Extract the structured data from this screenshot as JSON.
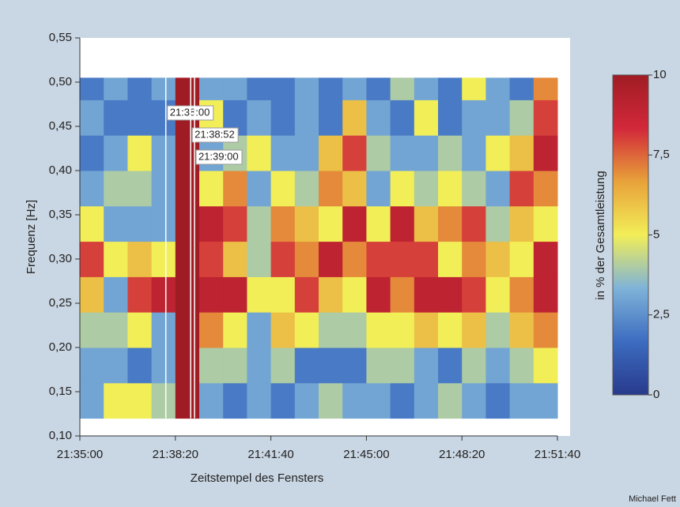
{
  "chart_data": {
    "type": "heatmap",
    "xlabel": "Zeitstempel des Fensters",
    "ylabel": "Frequenz [Hz]",
    "colorbar_label": "in % der Gesamtleistung",
    "credit": "Michael Fett",
    "xlim": [
      77700,
      78700
    ],
    "xticks": [
      {
        "value": 77700,
        "label": "21:35:00"
      },
      {
        "value": 77900,
        "label": "21:38:20"
      },
      {
        "value": 78100,
        "label": "21:41:40"
      },
      {
        "value": 78300,
        "label": "21:45:00"
      },
      {
        "value": 78500,
        "label": "21:48:20"
      },
      {
        "value": 78700,
        "label": "21:51:40"
      }
    ],
    "ylim": [
      0.1,
      0.55
    ],
    "yticks": [
      {
        "value": 0.1,
        "label": "0,10"
      },
      {
        "value": 0.15,
        "label": "0,15"
      },
      {
        "value": 0.2,
        "label": "0,20"
      },
      {
        "value": 0.25,
        "label": "0,25"
      },
      {
        "value": 0.3,
        "label": "0,30"
      },
      {
        "value": 0.35,
        "label": "0,35"
      },
      {
        "value": 0.4,
        "label": "0,40"
      },
      {
        "value": 0.45,
        "label": "0,45"
      },
      {
        "value": 0.5,
        "label": "0,50"
      },
      {
        "value": 0.55,
        "label": "0,55"
      }
    ],
    "zlim": [
      0,
      10
    ],
    "zticks": [
      0,
      {
        "value": 2.5,
        "label": "2,5"
      },
      5,
      {
        "value": 7.5,
        "label": "7,5"
      },
      10
    ],
    "colormap": [
      "#283a8c",
      "#3c6cc0",
      "#7fb3d8",
      "#f2ee58",
      "#e8a23a",
      "#d2283a",
      "#a01c24"
    ],
    "xbins": [
      77700,
      77750,
      77800,
      77850,
      77900,
      77950,
      78000,
      78050,
      78100,
      78150,
      78200,
      78250,
      78300,
      78350,
      78400,
      78450,
      78500,
      78550,
      78600,
      78650,
      78700
    ],
    "ybins": [
      0.12,
      0.16,
      0.2,
      0.24,
      0.28,
      0.32,
      0.36,
      0.4,
      0.44,
      0.48,
      0.505
    ],
    "values": [
      [
        3,
        5,
        5,
        4,
        10,
        3,
        2,
        3,
        2,
        3,
        4,
        3,
        3,
        2,
        3,
        4,
        3,
        2,
        3,
        3
      ],
      [
        3,
        3,
        2,
        3,
        10,
        4,
        4,
        3,
        4,
        2,
        2,
        2,
        4,
        4,
        3,
        2,
        4,
        3,
        4,
        5
      ],
      [
        4,
        4,
        5,
        3,
        10,
        7,
        5,
        3,
        6,
        5,
        4,
        4,
        5,
        5,
        6,
        5,
        6,
        4,
        6,
        7
      ],
      [
        6,
        3,
        8,
        9,
        10,
        9,
        9,
        5,
        5,
        8,
        6,
        5,
        9,
        7,
        9,
        9,
        8,
        5,
        7,
        9
      ],
      [
        8,
        5,
        6,
        5,
        10,
        8,
        6,
        4,
        8,
        7,
        9,
        7,
        8,
        8,
        8,
        5,
        7,
        6,
        5,
        9
      ],
      [
        5,
        3,
        3,
        3,
        10,
        9,
        8,
        4,
        7,
        6,
        5,
        9,
        5,
        9,
        6,
        7,
        8,
        4,
        6,
        5
      ],
      [
        3,
        4,
        4,
        3,
        10,
        5,
        7,
        3,
        5,
        4,
        7,
        6,
        3,
        5,
        4,
        5,
        4,
        3,
        8,
        7
      ],
      [
        2,
        3,
        5,
        3,
        10,
        3,
        4,
        5,
        3,
        3,
        6,
        8,
        4,
        3,
        3,
        4,
        3,
        5,
        6,
        9
      ],
      [
        3,
        2,
        2,
        2,
        10,
        5,
        2,
        3,
        2,
        3,
        2,
        6,
        3,
        2,
        5,
        2,
        3,
        3,
        4,
        8
      ],
      [
        2,
        3,
        2,
        3,
        10,
        3,
        3,
        2,
        2,
        3,
        2,
        3,
        2,
        4,
        3,
        2,
        5,
        3,
        2,
        7
      ]
    ],
    "annotations": [
      {
        "x": 77880,
        "label": "21:38:00"
      },
      {
        "x": 77932,
        "label": "21:38:52"
      },
      {
        "x": 77940,
        "label": "21:39:00"
      }
    ]
  }
}
